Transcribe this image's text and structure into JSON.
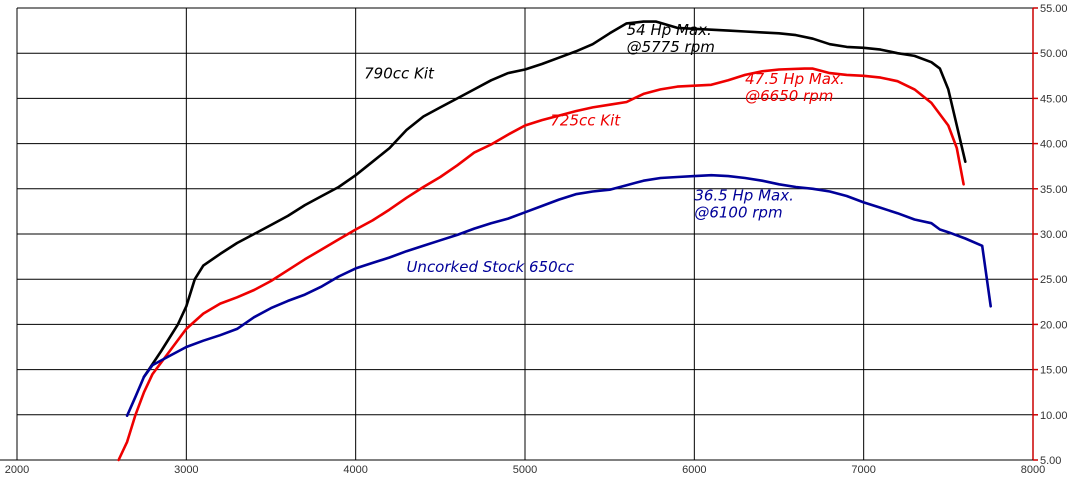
{
  "chart_data": {
    "type": "line",
    "xlim": [
      2000,
      8000
    ],
    "ylim": [
      5,
      55
    ],
    "x_ticks": [
      2000,
      3000,
      4000,
      5000,
      6000,
      7000,
      8000
    ],
    "y_ticks": [
      "5.00",
      "10.00",
      "15.00",
      "20.00",
      "25.00",
      "30.00",
      "35.00",
      "40.00",
      "45.00",
      "50.00",
      "55.00"
    ],
    "grid": true,
    "colors": {
      "grid": "#000000",
      "right_axis": "#cc0000"
    },
    "series": [
      {
        "name": "790cc Kit",
        "color": "#000000",
        "points": [
          [
            2750,
            14.2
          ],
          [
            2850,
            17.0
          ],
          [
            2950,
            20.0
          ],
          [
            3000,
            22.0
          ],
          [
            3050,
            25.0
          ],
          [
            3100,
            26.5
          ],
          [
            3200,
            27.8
          ],
          [
            3300,
            29.0
          ],
          [
            3400,
            30.0
          ],
          [
            3500,
            31.0
          ],
          [
            3600,
            32.0
          ],
          [
            3700,
            33.2
          ],
          [
            3800,
            34.2
          ],
          [
            3900,
            35.2
          ],
          [
            4000,
            36.5
          ],
          [
            4100,
            38.0
          ],
          [
            4200,
            39.5
          ],
          [
            4300,
            41.5
          ],
          [
            4400,
            43.0
          ],
          [
            4500,
            44.0
          ],
          [
            4600,
            45.0
          ],
          [
            4700,
            46.0
          ],
          [
            4800,
            47.0
          ],
          [
            4900,
            47.8
          ],
          [
            5000,
            48.2
          ],
          [
            5100,
            48.8
          ],
          [
            5200,
            49.5
          ],
          [
            5300,
            50.2
          ],
          [
            5400,
            51.0
          ],
          [
            5500,
            52.2
          ],
          [
            5600,
            53.3
          ],
          [
            5700,
            53.5
          ],
          [
            5775,
            53.5
          ],
          [
            5900,
            52.8
          ],
          [
            6000,
            52.7
          ],
          [
            6100,
            52.6
          ],
          [
            6200,
            52.5
          ],
          [
            6300,
            52.4
          ],
          [
            6400,
            52.3
          ],
          [
            6500,
            52.2
          ],
          [
            6600,
            52.0
          ],
          [
            6700,
            51.6
          ],
          [
            6800,
            51.0
          ],
          [
            6900,
            50.7
          ],
          [
            7000,
            50.6
          ],
          [
            7100,
            50.4
          ],
          [
            7200,
            50.0
          ],
          [
            7300,
            49.7
          ],
          [
            7400,
            49.0
          ],
          [
            7450,
            48.3
          ],
          [
            7500,
            46.0
          ],
          [
            7550,
            42.0
          ],
          [
            7600,
            38.0
          ]
        ]
      },
      {
        "name": "725cc Kit",
        "color": "#ee0000",
        "points": [
          [
            2600,
            5.0
          ],
          [
            2650,
            7.0
          ],
          [
            2700,
            10.0
          ],
          [
            2750,
            12.5
          ],
          [
            2800,
            14.5
          ],
          [
            2900,
            17.0
          ],
          [
            3000,
            19.5
          ],
          [
            3100,
            21.2
          ],
          [
            3200,
            22.3
          ],
          [
            3300,
            23.0
          ],
          [
            3400,
            23.8
          ],
          [
            3500,
            24.8
          ],
          [
            3600,
            26.0
          ],
          [
            3700,
            27.2
          ],
          [
            3800,
            28.3
          ],
          [
            3900,
            29.4
          ],
          [
            4000,
            30.5
          ],
          [
            4100,
            31.5
          ],
          [
            4200,
            32.7
          ],
          [
            4300,
            34.0
          ],
          [
            4400,
            35.2
          ],
          [
            4500,
            36.3
          ],
          [
            4600,
            37.6
          ],
          [
            4700,
            39.0
          ],
          [
            4800,
            39.9
          ],
          [
            4900,
            41.0
          ],
          [
            5000,
            42.0
          ],
          [
            5100,
            42.6
          ],
          [
            5200,
            43.1
          ],
          [
            5300,
            43.6
          ],
          [
            5400,
            44.0
          ],
          [
            5500,
            44.3
          ],
          [
            5600,
            44.6
          ],
          [
            5700,
            45.5
          ],
          [
            5800,
            46.0
          ],
          [
            5900,
            46.3
          ],
          [
            6000,
            46.4
          ],
          [
            6100,
            46.5
          ],
          [
            6200,
            47.0
          ],
          [
            6300,
            47.6
          ],
          [
            6400,
            48.0
          ],
          [
            6500,
            48.2
          ],
          [
            6650,
            48.3
          ],
          [
            6700,
            48.3
          ],
          [
            6800,
            47.8
          ],
          [
            6900,
            47.6
          ],
          [
            7000,
            47.5
          ],
          [
            7100,
            47.3
          ],
          [
            7200,
            46.9
          ],
          [
            7300,
            46.0
          ],
          [
            7400,
            44.5
          ],
          [
            7500,
            42.0
          ],
          [
            7550,
            39.5
          ],
          [
            7590,
            35.5
          ]
        ]
      },
      {
        "name": "Uncorked Stock 650cc",
        "color": "#000099",
        "points": [
          [
            2650,
            9.9
          ],
          [
            2700,
            12.0
          ],
          [
            2750,
            14.2
          ],
          [
            2800,
            15.5
          ],
          [
            2900,
            16.5
          ],
          [
            3000,
            17.5
          ],
          [
            3100,
            18.2
          ],
          [
            3200,
            18.8
          ],
          [
            3300,
            19.5
          ],
          [
            3400,
            20.8
          ],
          [
            3500,
            21.8
          ],
          [
            3600,
            22.6
          ],
          [
            3700,
            23.3
          ],
          [
            3800,
            24.2
          ],
          [
            3900,
            25.3
          ],
          [
            4000,
            26.2
          ],
          [
            4100,
            26.8
          ],
          [
            4200,
            27.4
          ],
          [
            4300,
            28.1
          ],
          [
            4400,
            28.7
          ],
          [
            4500,
            29.3
          ],
          [
            4600,
            29.9
          ],
          [
            4700,
            30.6
          ],
          [
            4800,
            31.2
          ],
          [
            4900,
            31.7
          ],
          [
            5000,
            32.4
          ],
          [
            5100,
            33.1
          ],
          [
            5200,
            33.8
          ],
          [
            5300,
            34.4
          ],
          [
            5400,
            34.7
          ],
          [
            5500,
            34.9
          ],
          [
            5600,
            35.4
          ],
          [
            5700,
            35.9
          ],
          [
            5800,
            36.2
          ],
          [
            5900,
            36.3
          ],
          [
            6000,
            36.4
          ],
          [
            6100,
            36.5
          ],
          [
            6200,
            36.4
          ],
          [
            6300,
            36.2
          ],
          [
            6400,
            35.9
          ],
          [
            6500,
            35.5
          ],
          [
            6600,
            35.2
          ],
          [
            6700,
            35.0
          ],
          [
            6800,
            34.7
          ],
          [
            6900,
            34.2
          ],
          [
            7000,
            33.5
          ],
          [
            7100,
            32.9
          ],
          [
            7200,
            32.3
          ],
          [
            7300,
            31.6
          ],
          [
            7400,
            31.2
          ],
          [
            7450,
            30.5
          ],
          [
            7500,
            30.2
          ],
          [
            7600,
            29.5
          ],
          [
            7700,
            28.7
          ],
          [
            7750,
            22.0
          ]
        ]
      }
    ],
    "annotations": [
      {
        "id": "label-790",
        "lines": [
          "790cc Kit"
        ],
        "x": 4050,
        "y": 47.2,
        "color": "#000000"
      },
      {
        "id": "label-790-max",
        "lines": [
          "54 Hp Max.",
          "@5775 rpm"
        ],
        "x": 5600,
        "y": 52.0,
        "color": "#000000"
      },
      {
        "id": "label-725",
        "lines": [
          "725cc Kit"
        ],
        "x": 5150,
        "y": 42.0,
        "color": "#ee0000"
      },
      {
        "id": "label-725-max",
        "lines": [
          "47.5 Hp Max.",
          "@6650 rpm"
        ],
        "x": 6300,
        "y": 46.6,
        "color": "#ee0000"
      },
      {
        "id": "label-stock",
        "lines": [
          "Uncorked Stock 650cc"
        ],
        "x": 4300,
        "y": 25.8,
        "color": "#000099"
      },
      {
        "id": "label-stock-max",
        "lines": [
          "36.5 Hp Max.",
          "@6100 rpm"
        ],
        "x": 6000,
        "y": 33.7,
        "color": "#000099"
      }
    ]
  }
}
